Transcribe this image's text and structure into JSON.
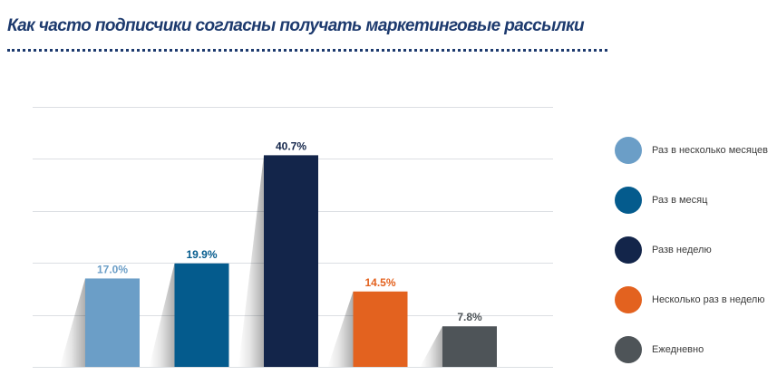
{
  "title": "Как часто подписчики согласны получать маркетинговые рассылки",
  "chart_data": {
    "type": "bar",
    "categories": [
      "Раз в несколько месяцев",
      "Раз в месяц",
      "Разв неделю",
      "Несколько раз в неделю",
      "Ежедневно"
    ],
    "values": [
      17.0,
      19.9,
      40.7,
      14.5,
      7.8
    ],
    "value_labels": [
      "17.0%",
      "19.9%",
      "40.7%",
      "14.5%",
      "7.8%"
    ],
    "colors": [
      "#6b9ec7",
      "#045b8d",
      "#13254a",
      "#e3621f",
      "#4e5458"
    ],
    "ylim": [
      0,
      50
    ],
    "gridlines": [
      0,
      10,
      20,
      30,
      40,
      50
    ],
    "grid": true,
    "legend_position": "right",
    "title": "Как часто подписчики согласны получать маркетинговые рассылки",
    "xlabel": "",
    "ylabel": ""
  },
  "legend": [
    {
      "label": "Раз в несколько месяцев",
      "color": "#6b9ec7"
    },
    {
      "label": "Раз в месяц",
      "color": "#045b8d"
    },
    {
      "label": "Разв неделю",
      "color": "#13254a"
    },
    {
      "label": "Несколько раз в неделю",
      "color": "#e3621f"
    },
    {
      "label": "Ежедневно",
      "color": "#4e5458"
    }
  ]
}
